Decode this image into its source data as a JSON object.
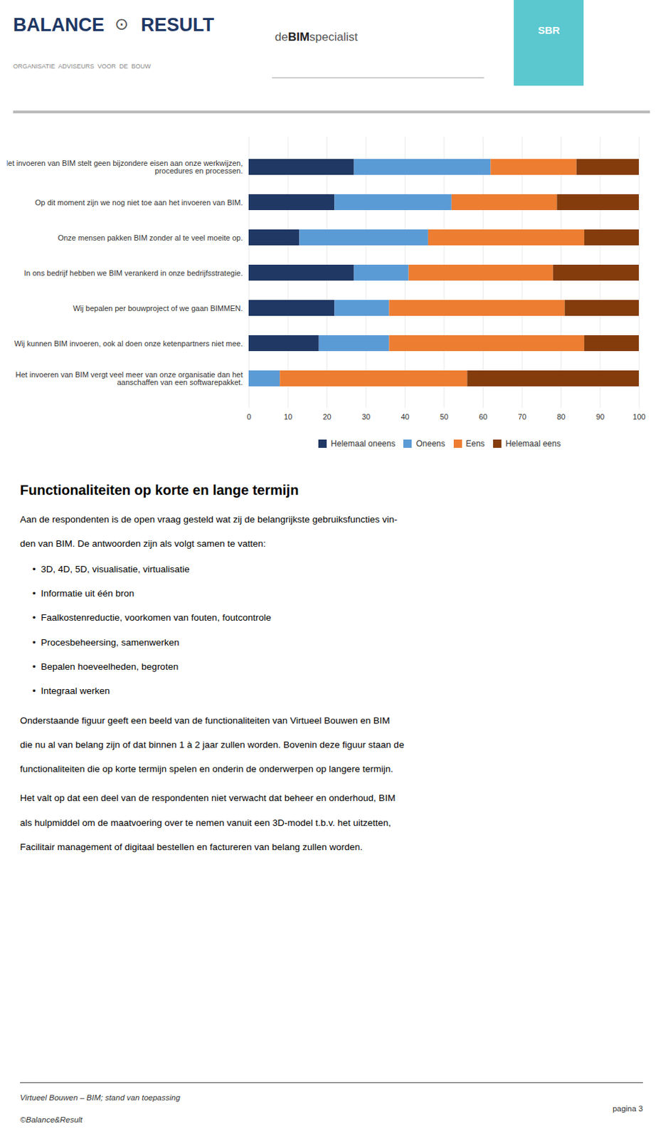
{
  "chart_data": {
    "type": "bar",
    "orientation": "horizontal",
    "stacked": true,
    "categories": [
      "Het invoeren van BIM vergt veel meer van onze organisatie dan het\naanschaffen van een softwarepakket.",
      "Wij kunnen BIM invoeren, ook al doen onze ketenpartners niet mee.",
      "Wij bepalen per bouwproject of we gaan BIMMEN.",
      "In ons bedrijf hebben we BIM verankerd in onze bedrijfsstrategie.",
      "Onze mensen pakken BIM zonder al te veel moeite op.",
      "Op dit moment zijn we nog niet toe aan het invoeren van BIM.",
      "Het invoeren van BIM stelt geen bijzondere eisen aan onze werkwijzen,\nprocedures en processen."
    ],
    "series": [
      {
        "name": "Helemaal oneens",
        "color": "#1f3864",
        "values": [
          0,
          18,
          22,
          27,
          13,
          22,
          27
        ]
      },
      {
        "name": "Oneens",
        "color": "#5b9bd5",
        "values": [
          8,
          18,
          14,
          14,
          33,
          30,
          35
        ]
      },
      {
        "name": "Eens",
        "color": "#ed7d31",
        "values": [
          48,
          50,
          45,
          37,
          40,
          27,
          22
        ]
      },
      {
        "name": "Helemaal eens",
        "color": "#843c0c",
        "values": [
          44,
          14,
          19,
          22,
          14,
          21,
          16
        ]
      }
    ],
    "xlim": [
      0,
      100
    ],
    "xticks": [
      0,
      10,
      20,
      30,
      40,
      50,
      60,
      70,
      80,
      90,
      100
    ],
    "grid": true,
    "legend": "bottom",
    "annotations": [
      "BALANCE",
      "⊙",
      "RESULT",
      "ORGANISATIE  ADVISEURS  VOOR  DE  BOUW",
      "de",
      "BIM",
      "specialist",
      "SBR",
      "Functionaliteiten op korte en lange termijn",
      "Aan de respondenten is de open vraag gesteld wat zij de belangrijkste gebruiksfuncties vin-",
      "den van BIM. De antwoorden zijn als volgt samen te vatten:",
      "•  3D, 4D, 5D, visualisatie, virtualisatie",
      "•  Informatie uit één bron",
      "•  Faalkostenreductie, voorkomen van fouten, foutcontrole",
      "•  Procesbeheersing, samenwerken",
      "•  Bepalen hoeveelheden, begroten",
      "•  Integraal werken",
      "Onderstaande figuur geeft een beeld van de functionaliteiten van Virtueel Bouwen en BIM",
      "die nu al van belang zijn of dat binnen 1 à 2 jaar zullen worden. Bovenin deze figuur staan de",
      "functionaliteiten die op korte termijn spelen en onderin de onderwerpen op langere termijn.",
      "Het valt op dat een deel van de respondenten niet verwacht dat beheer en onderhoud, BIM",
      "als hulpmiddel om de maatvoering over te nemen vanuit een 3D-model t.b.v. het uitzetten,",
      "Facilitair management of digitaal bestellen en factureren van belang zullen worden.",
      "Virtueel Bouwen – BIM; stand van toepassing",
      "©Balance&Result",
      "pagina 3"
    ]
  }
}
